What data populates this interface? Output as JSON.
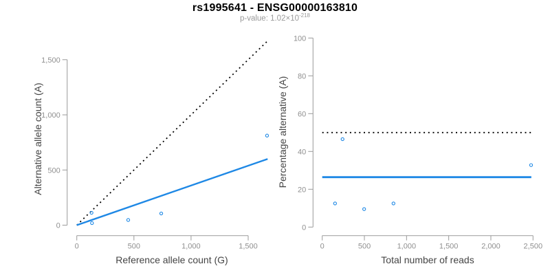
{
  "figure": {
    "title": "rs1995641 - ENSG00000163810",
    "subtitle": {
      "prefix": "p-value: 1.02×10",
      "exponent": "-218"
    }
  },
  "colors": {
    "accent_blue": "#1E88E5",
    "axis_gray": "#999999",
    "tick_label_gray": "#8F8F8F",
    "subtitle_gray": "#9A9A9A"
  },
  "chart_data": [
    {
      "panel": "left",
      "type": "scatter",
      "xlabel": "Reference allele count (G)",
      "ylabel": "Alternative allele count (A)",
      "xlim": [
        0,
        1500
      ],
      "ylim": [
        0,
        1500
      ],
      "grid": false,
      "legend": "none",
      "xticks": {
        "values": [
          0,
          500,
          1000,
          1500
        ],
        "labels": [
          "0",
          "500",
          "1,000",
          "1,500"
        ]
      },
      "yticks": {
        "values": [
          0,
          500,
          1000,
          1500
        ],
        "labels": [
          "0",
          "500",
          "1,000",
          "1,500"
        ]
      },
      "point_color": "#1E88E5",
      "points": [
        {
          "x": 133,
          "y": 19
        },
        {
          "x": 129,
          "y": 112
        },
        {
          "x": 450,
          "y": 47
        },
        {
          "x": 739,
          "y": 106
        },
        {
          "x": 1665,
          "y": 812
        }
      ],
      "lines": [
        {
          "name": "identity-line",
          "style": "dotted",
          "color": "#000000",
          "x1": 0,
          "y1": 0,
          "x2": 1670,
          "y2": 1670
        },
        {
          "name": "fit-line",
          "style": "solid",
          "color": "#1E88E5",
          "x1": 0,
          "y1": 0,
          "x2": 1670,
          "y2": 600
        }
      ]
    },
    {
      "panel": "right",
      "type": "scatter",
      "xlabel": "Total number of reads",
      "ylabel": "Percentage alternative (A)",
      "xlim": [
        0,
        2500
      ],
      "ylim": [
        0,
        100
      ],
      "grid": false,
      "legend": "none",
      "xticks": {
        "values": [
          0,
          500,
          1000,
          1500,
          2000,
          2500
        ],
        "labels": [
          "0",
          "500",
          "1,000",
          "1,500",
          "2,000",
          "2,500"
        ]
      },
      "yticks": {
        "values": [
          0,
          20,
          40,
          60,
          80,
          100
        ],
        "labels": [
          "0",
          "20",
          "40",
          "60",
          "80",
          "100"
        ]
      },
      "point_color": "#1E88E5",
      "points": [
        {
          "x": 152,
          "y": 12.5
        },
        {
          "x": 241,
          "y": 46.5
        },
        {
          "x": 497,
          "y": 9.5
        },
        {
          "x": 845,
          "y": 12.5
        },
        {
          "x": 2477,
          "y": 32.8
        }
      ],
      "lines": [
        {
          "name": "fifty-percent-line",
          "style": "dotted",
          "color": "#000000",
          "x1": 0,
          "y1": 50,
          "x2": 2480,
          "y2": 50
        },
        {
          "name": "fit-line",
          "style": "solid",
          "color": "#1E88E5",
          "x1": 0,
          "y1": 26.4,
          "x2": 2480,
          "y2": 26.4
        }
      ]
    }
  ]
}
